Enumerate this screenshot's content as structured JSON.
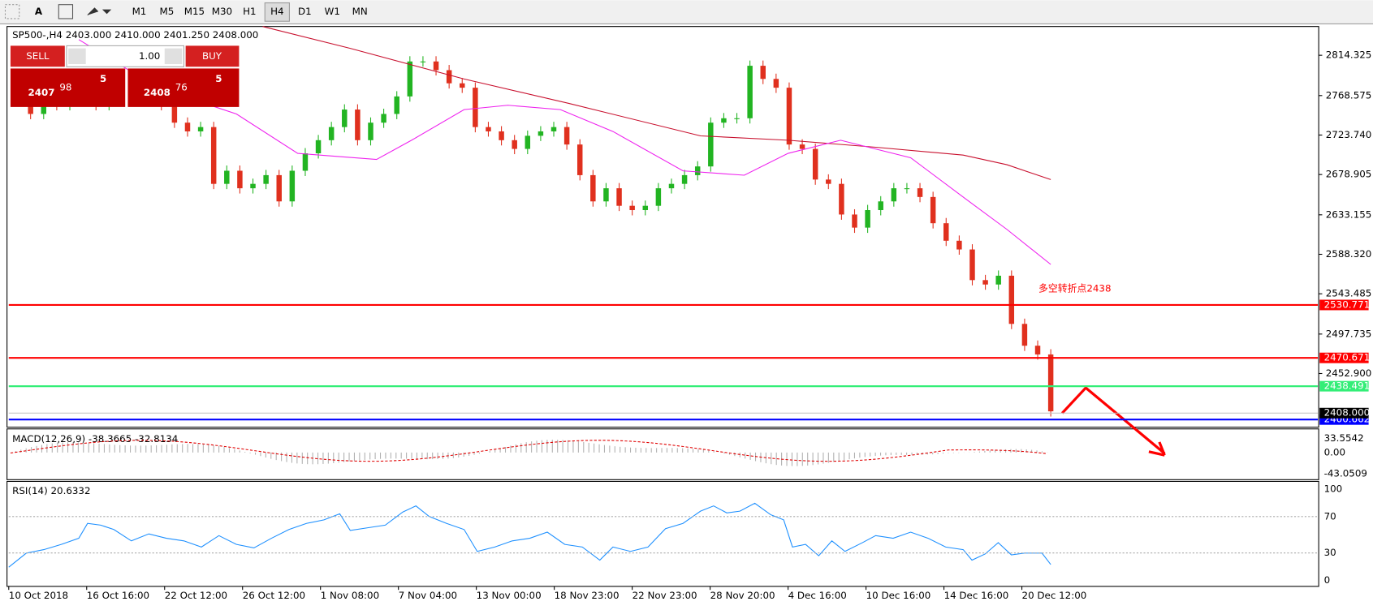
{
  "toolbar": {
    "text_tool": "A",
    "timeframes": [
      "M1",
      "M5",
      "M15",
      "M30",
      "H1",
      "H4",
      "D1",
      "W1",
      "MN"
    ],
    "active": "H4"
  },
  "trade_panel": {
    "sell": "SELL",
    "buy": "BUY",
    "lot": "1.00",
    "bid_big": "2407",
    "bid_main": "98",
    "bid_sup": "5",
    "ask_big": "2408",
    "ask_main": "76",
    "ask_sup": "5"
  },
  "price_chart": {
    "symbol_info": "SP500-,H4  2403.000 2410.000 2401.250 2408.000",
    "ylim": [
      2393,
      2847
    ],
    "yticks": [
      2814.325,
      2768.575,
      {
        "value": 2723.74,
        "label": "2723.740"
      },
      2678.905,
      2633.155,
      {
        "value": 2588.32,
        "label": "2588.320"
      },
      2543.485,
      2497.735,
      {
        "value": 2452.9,
        "label": "2452.900"
      }
    ],
    "levels": [
      {
        "value": 2530.771,
        "color": "#ff0000"
      },
      {
        "value": 2470.671,
        "color": "#ff0000"
      },
      {
        "value": 2438.491,
        "color": "#33ee77"
      },
      {
        "value": 2400.662,
        "color": "#0000ff"
      }
    ],
    "current": {
      "value": 2408,
      "label": "2408.000"
    },
    "closes": [
      2767.6,
      2747.7,
      2762.6,
      2757.7,
      2762.6,
      2767.6,
      2757.7,
      2767.6,
      2762.6,
      2772.6,
      2767.6,
      2757.7,
      2737.8,
      2727.9,
      2732.8,
      2668.3,
      2683.2,
      2663.3,
      2668.3,
      2678.2,
      2648.4,
      2683.2,
      2703.0,
      2717.9,
      2732.8,
      2752.7,
      2717.9,
      2737.8,
      2747.7,
      2767.6,
      2807.3,
      2807.3,
      2797.4,
      2782.5,
      2777.5,
      2732.8,
      2727.9,
      2717.9,
      2708.0,
      2722.9,
      2727.9,
      2732.8,
      2713.0,
      2678.2,
      2648.4,
      2663.3,
      2643.4,
      2638.5,
      2643.4,
      2663.3,
      2668.3,
      2678.2,
      2688.1,
      2737.8,
      2742.8,
      2742.8,
      2802.4,
      2787.5,
      2777.5,
      2713.0,
      2708.0,
      2673.2,
      2668.3,
      2633.5,
      2618.6,
      2638.5,
      2648.4,
      2663.3,
      2663.3,
      2653.4,
      2623.6,
      2603.7,
      2593.8,
      2559.0,
      2554.0,
      2564.0,
      2509.3,
      2484.5,
      2474.6,
      2410.0
    ],
    "annotation": "多空转折点2438"
  },
  "macd": {
    "label": "MACD(12,26,9) -38.3665 -32.8134",
    "ticks": [
      "33.5542",
      "0.00",
      "-43.0509"
    ]
  },
  "rsi": {
    "label": "RSI(14) 20.6332",
    "ylim": [
      0,
      100
    ],
    "yticks": [
      100,
      70,
      30,
      0
    ]
  },
  "time_axis": [
    "10 Oct 2018",
    "16 Oct 16:00",
    "22 Oct 12:00",
    "26 Oct 12:00",
    "1 Nov 08:00",
    "7 Nov 04:00",
    "13 Nov 00:00",
    "18 Nov 23:00",
    "22 Nov 23:00",
    "28 Nov 20:00",
    "4 Dec 16:00",
    "10 Dec 16:00",
    "14 Dec 16:00",
    "20 Dec 12:00"
  ]
}
